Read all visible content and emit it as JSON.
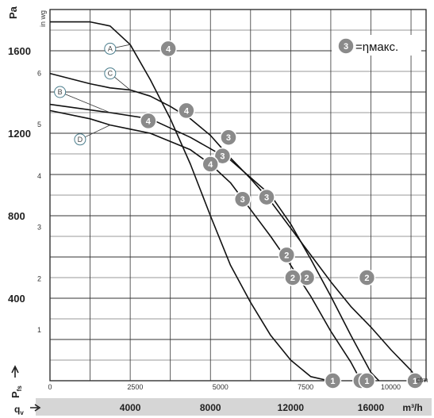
{
  "chart_data": {
    "type": "line",
    "units": {
      "pa_axis": "Pa",
      "inwg_axis": "in wg",
      "cfm_axis": "cfm",
      "m3h_axis": "m³/h",
      "pressure_symbol": "P",
      "pressure_subscript": "fs",
      "flow_symbol": "q",
      "flow_subscript": "v"
    },
    "x_range_m3h": [
      0,
      18750
    ],
    "y_range_pa": [
      0,
      1800
    ],
    "pa_ticks": [
      400,
      800,
      1200,
      1600
    ],
    "inwg_ticks": [
      1,
      2,
      3,
      4,
      5,
      6
    ],
    "cfm_ticks": [
      0,
      2500,
      5000,
      7500,
      10000
    ],
    "m3h_ticks": [
      4000,
      8000,
      12000,
      16000
    ],
    "legend": {
      "marker": "3",
      "text": "=ηмакс."
    },
    "grid": true,
    "series": [
      {
        "name": "A",
        "points": [
          [
            0,
            1740
          ],
          [
            2000,
            1740
          ],
          [
            3000,
            1720
          ],
          [
            4000,
            1630
          ],
          [
            5000,
            1460
          ],
          [
            6000,
            1270
          ],
          [
            7000,
            1050
          ],
          [
            8000,
            800
          ],
          [
            9000,
            560
          ],
          [
            10000,
            380
          ],
          [
            11000,
            220
          ],
          [
            12000,
            100
          ],
          [
            13000,
            20
          ],
          [
            13900,
            0
          ]
        ],
        "markers": [
          {
            "id": "4",
            "x": 5900,
            "y": 1610
          },
          {
            "id": "3",
            "x": 8900,
            "y": 1180
          },
          {
            "id": "2",
            "x": 11800,
            "y": 610
          },
          {
            "id": "1",
            "x": 14100,
            "y": 0
          }
        ]
      },
      {
        "name": "B",
        "points": [
          [
            0,
            1340
          ],
          [
            3000,
            1300
          ],
          [
            5000,
            1270
          ],
          [
            7000,
            1180
          ],
          [
            9000,
            1070
          ],
          [
            11000,
            900
          ],
          [
            12000,
            760
          ],
          [
            13000,
            590
          ],
          [
            14000,
            410
          ],
          [
            15000,
            220
          ],
          [
            16000,
            40
          ],
          [
            16400,
            0
          ]
        ],
        "markers": [
          {
            "id": "4",
            "x": 4900,
            "y": 1260
          },
          {
            "id": "3",
            "x": 8600,
            "y": 1090
          },
          {
            "id": "2",
            "x": 12800,
            "y": 500
          },
          {
            "id": "1",
            "x": 15500,
            "y": 0
          }
        ]
      },
      {
        "name": "C",
        "points": [
          [
            0,
            1490
          ],
          [
            2000,
            1440
          ],
          [
            3000,
            1420
          ],
          [
            4000,
            1410
          ],
          [
            5000,
            1380
          ],
          [
            6000,
            1330
          ],
          [
            7000,
            1270
          ],
          [
            8000,
            1190
          ],
          [
            9000,
            1080
          ],
          [
            10000,
            980
          ],
          [
            11000,
            870
          ],
          [
            12000,
            740
          ],
          [
            13000,
            610
          ],
          [
            14000,
            480
          ],
          [
            15000,
            360
          ],
          [
            16000,
            260
          ],
          [
            17000,
            150
          ],
          [
            18000,
            50
          ],
          [
            18400,
            0
          ]
        ],
        "markers": [
          {
            "id": "4",
            "x": 6800,
            "y": 1310
          },
          {
            "id": "3",
            "x": 10800,
            "y": 890
          },
          {
            "id": "2",
            "x": 15800,
            "y": 500
          },
          {
            "id": "1",
            "x": 18200,
            "y": 0
          }
        ]
      },
      {
        "name": "D",
        "points": [
          [
            0,
            1310
          ],
          [
            2000,
            1270
          ],
          [
            3000,
            1240
          ],
          [
            4000,
            1220
          ],
          [
            5000,
            1200
          ],
          [
            6000,
            1160
          ],
          [
            7000,
            1120
          ],
          [
            8000,
            1050
          ],
          [
            9000,
            960
          ],
          [
            10000,
            830
          ],
          [
            11000,
            700
          ],
          [
            12000,
            560
          ],
          [
            13000,
            410
          ],
          [
            14000,
            240
          ],
          [
            15000,
            90
          ],
          [
            15500,
            0
          ]
        ],
        "markers": [
          {
            "id": "4",
            "x": 8000,
            "y": 1050
          },
          {
            "id": "3",
            "x": 9600,
            "y": 880
          },
          {
            "id": "2",
            "x": 12100,
            "y": 500
          },
          {
            "id": "1",
            "x": 15800,
            "y": 0
          }
        ]
      }
    ],
    "curve_labels": [
      {
        "id": "A",
        "x": 3000,
        "y": 1610
      },
      {
        "id": "B",
        "x": 500,
        "y": 1400
      },
      {
        "id": "C",
        "x": 3000,
        "y": 1490
      },
      {
        "id": "D",
        "x": 1500,
        "y": 1170
      }
    ]
  }
}
